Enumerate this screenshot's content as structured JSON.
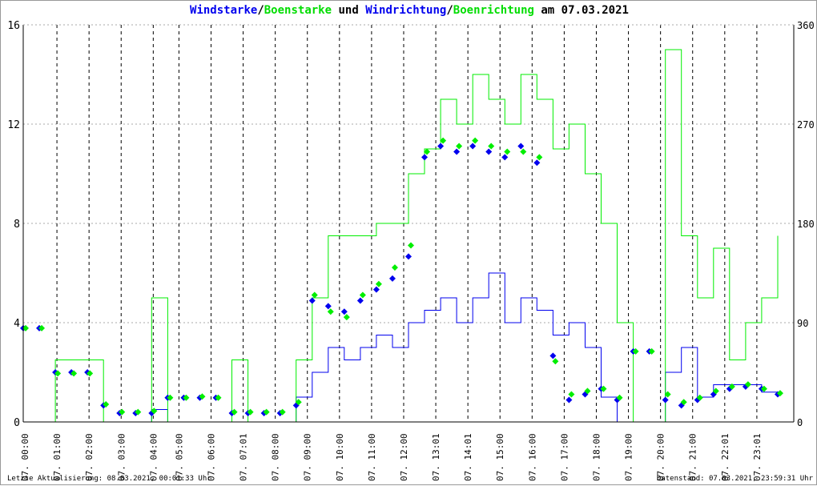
{
  "title": {
    "part1": "Windstarke",
    "sep1": "/",
    "part2": "Boenstarke",
    "mid": " und ",
    "part3": "Windrichtung",
    "sep2": "/",
    "part4": "Boenrichtung",
    "tail": " am 07.03.2021"
  },
  "footer": {
    "left": "Letzte Aktualisierung: 08.03.2021, 00:01:33 Uhr",
    "right": "Datenstand: 07.03.2021, 23:59:31 Uhr"
  },
  "colors": {
    "wind": "#0000ee",
    "gust": "#00ee00",
    "grid": "#000000"
  },
  "chart_data": {
    "type": "line",
    "title": "Windstarke/Boenstarke und Windrichtung/Boenrichtung am 07.03.2021",
    "ylim": [
      0,
      16
    ],
    "y_ticks": [
      "0",
      "4",
      "8",
      "12",
      "16"
    ],
    "y2lim": [
      0,
      360
    ],
    "y2_ticks": [
      "0",
      "90",
      "180",
      "270",
      "360"
    ],
    "x_range_hours": [
      0,
      24
    ],
    "x_ticks": [
      {
        "h": 0,
        "label": "07. 00:00"
      },
      {
        "h": 1,
        "label": "07. 01:00"
      },
      {
        "h": 2,
        "label": "07. 02:00"
      },
      {
        "h": 3,
        "label": "07. 03:00"
      },
      {
        "h": 4,
        "label": "07. 04:00"
      },
      {
        "h": 4.8,
        "label": "07. 05:00"
      },
      {
        "h": 5.8,
        "label": "07. 06:00"
      },
      {
        "h": 6.8,
        "label": "07. 07:01"
      },
      {
        "h": 7.8,
        "label": "07. 08:00"
      },
      {
        "h": 8.8,
        "label": "07. 09:00"
      },
      {
        "h": 9.8,
        "label": "07. 10:00"
      },
      {
        "h": 10.8,
        "label": "07. 11:00"
      },
      {
        "h": 11.8,
        "label": "07. 12:00"
      },
      {
        "h": 12.8,
        "label": "07. 13:01"
      },
      {
        "h": 13.8,
        "label": "07. 14:01"
      },
      {
        "h": 14.8,
        "label": "07. 15:00"
      },
      {
        "h": 15.8,
        "label": "07. 16:00"
      },
      {
        "h": 16.8,
        "label": "07. 17:00"
      },
      {
        "h": 17.8,
        "label": "07. 18:00"
      },
      {
        "h": 18.8,
        "label": "07. 19:00"
      },
      {
        "h": 19.8,
        "label": "07. 20:00"
      },
      {
        "h": 20.8,
        "label": "07. 21:00"
      },
      {
        "h": 21.8,
        "label": "07. 22:01"
      },
      {
        "h": 22.8,
        "label": "07. 23:01"
      }
    ],
    "x": [
      0,
      0.5,
      1,
      1.5,
      2,
      2.5,
      3,
      3.5,
      4,
      4.5,
      5,
      5.5,
      6,
      6.5,
      7,
      7.5,
      8,
      8.5,
      9,
      9.5,
      10,
      10.5,
      11,
      11.5,
      12,
      12.5,
      13,
      13.5,
      14,
      14.5,
      15,
      15.5,
      16,
      16.5,
      17,
      17.5,
      18,
      18.5,
      19,
      19.5,
      20,
      20.5,
      21,
      21.5,
      22,
      22.5,
      23,
      23.5
    ],
    "series": [
      {
        "name": "Windstarke",
        "axis": "left",
        "kind": "line",
        "color": "#0000ee",
        "values": [
          0,
          0,
          0,
          0,
          0,
          0,
          0,
          0,
          0.5,
          0,
          0,
          0,
          0,
          0,
          0,
          0,
          0,
          1,
          2,
          3,
          2.5,
          3,
          3.5,
          3,
          4,
          4.5,
          5,
          4,
          5,
          6,
          4,
          5,
          4.5,
          3.5,
          4,
          3,
          1,
          0,
          0,
          0,
          2,
          3,
          1,
          1.5,
          1.5,
          1.5,
          1.2,
          1
        ]
      },
      {
        "name": "Boenstarke",
        "axis": "left",
        "kind": "line",
        "color": "#00ee00",
        "values": [
          0,
          0,
          2.5,
          2.5,
          2.5,
          0,
          0,
          0,
          5,
          0,
          0,
          0,
          0,
          2.5,
          0,
          0,
          0,
          2.5,
          5,
          7.5,
          7.5,
          7.5,
          8,
          8,
          10,
          11,
          13,
          12,
          14,
          13,
          12,
          14,
          13,
          11,
          12,
          10,
          8,
          4,
          0,
          0,
          15,
          7.5,
          5,
          7,
          2.5,
          4,
          5,
          7.5
        ]
      },
      {
        "name": "Windrichtung",
        "axis": "right",
        "kind": "scatter",
        "color": "#0000ee",
        "values": [
          85,
          85,
          45,
          45,
          45,
          15,
          8,
          8,
          8,
          22,
          22,
          22,
          22,
          8,
          8,
          8,
          8,
          15,
          110,
          105,
          100,
          110,
          120,
          130,
          150,
          240,
          250,
          245,
          250,
          245,
          240,
          250,
          235,
          60,
          20,
          25,
          30,
          20,
          64,
          64,
          20,
          15,
          20,
          25,
          30,
          32,
          30,
          25
        ]
      },
      {
        "name": "Boenrichtung",
        "axis": "right",
        "kind": "scatter",
        "color": "#00ee00",
        "values": [
          85,
          85,
          44,
          44,
          44,
          16,
          9,
          9,
          10,
          22,
          22,
          23,
          22,
          9,
          9,
          9,
          9,
          18,
          115,
          100,
          95,
          115,
          125,
          140,
          160,
          245,
          255,
          250,
          255,
          250,
          245,
          245,
          240,
          55,
          25,
          28,
          30,
          22,
          64,
          64,
          25,
          18,
          22,
          28,
          32,
          34,
          30,
          26
        ]
      }
    ]
  }
}
